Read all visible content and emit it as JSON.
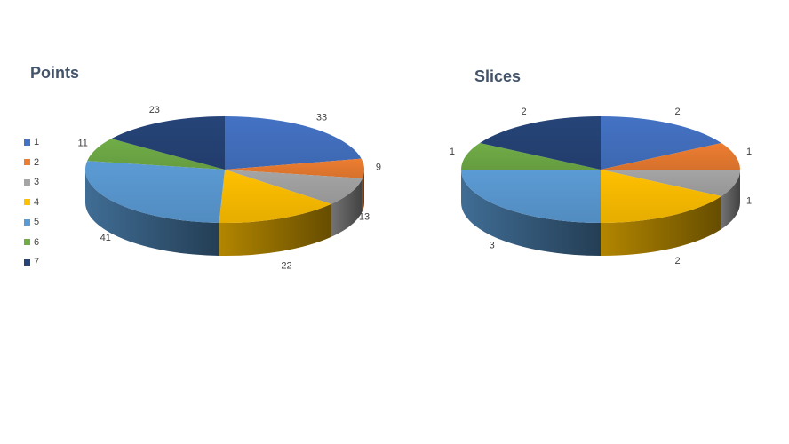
{
  "colors": [
    "#4472c4",
    "#ed7d31",
    "#a5a5a5",
    "#ffc000",
    "#5b9bd5",
    "#70ad47",
    "#264478"
  ],
  "legend": [
    "1",
    "2",
    "3",
    "4",
    "5",
    "6",
    "7"
  ],
  "chart_data": [
    {
      "type": "pie",
      "style": "3d",
      "title": "Points",
      "categories": [
        "1",
        "2",
        "3",
        "4",
        "5",
        "6",
        "7"
      ],
      "values": [
        33,
        9,
        13,
        22,
        41,
        11,
        23
      ],
      "labels": [
        "33",
        "9",
        "13",
        "22",
        "41",
        "11",
        "23"
      ],
      "legend_position": "left"
    },
    {
      "type": "pie",
      "style": "3d",
      "title": "Slices",
      "categories": [
        "1",
        "2",
        "3",
        "4",
        "5",
        "6",
        "7"
      ],
      "values": [
        2,
        1,
        1,
        2,
        3,
        1,
        2
      ],
      "labels": [
        "2",
        "1",
        "1",
        "2",
        "3",
        "1",
        "2"
      ],
      "legend_position": "none"
    }
  ]
}
